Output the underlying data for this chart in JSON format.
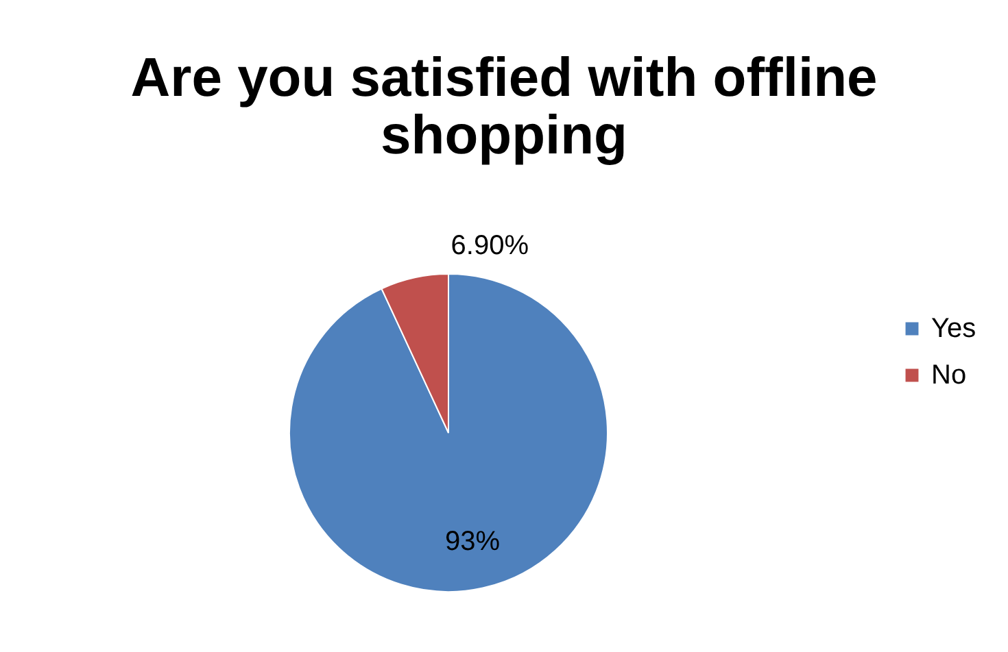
{
  "chart_data": {
    "type": "pie",
    "title": "Are you satisfied with offline shopping",
    "categories": [
      "Yes",
      "No"
    ],
    "values": [
      93,
      6.9
    ],
    "colors": [
      "#4f81bd",
      "#c0504d"
    ],
    "value_labels": [
      "93%",
      "6.90%"
    ],
    "legend": "right"
  }
}
